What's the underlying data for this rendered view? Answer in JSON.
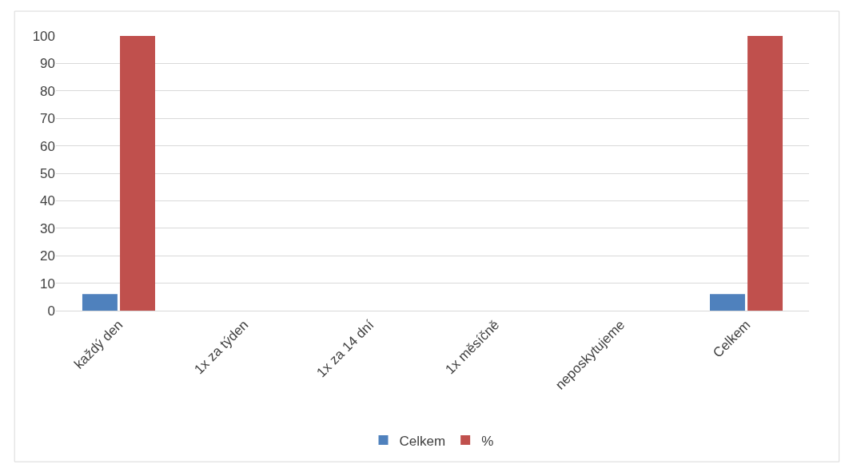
{
  "chart_data": {
    "type": "bar",
    "categories": [
      "každý den",
      "1x za týden",
      "1x za 14 dní",
      "1x měsíčně",
      "neposkytujeme",
      "Celkem"
    ],
    "series": [
      {
        "name": "Celkem",
        "color": "#4f81bd",
        "values": [
          6,
          0,
          0,
          0,
          0,
          6
        ]
      },
      {
        "name": "%",
        "color": "#c0504d",
        "values": [
          100,
          0,
          0,
          0,
          0,
          100
        ]
      }
    ],
    "ylim": [
      0,
      100
    ],
    "yticks": [
      0,
      10,
      20,
      30,
      40,
      50,
      60,
      70,
      80,
      90,
      100
    ],
    "grid": "y",
    "legend": "bottom"
  }
}
